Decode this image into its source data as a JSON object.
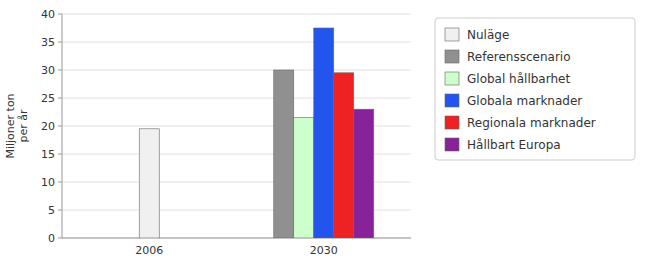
{
  "chart_data": {
    "type": "bar",
    "categories": [
      "2006",
      "2030"
    ],
    "series": [
      {
        "name": "Nuläge",
        "color": "#F0F0F0",
        "values": [
          19.5,
          null
        ]
      },
      {
        "name": "Referensscenario",
        "color": "#909090",
        "values": [
          null,
          30.0
        ]
      },
      {
        "name": "Global hållbarhet",
        "color": "#CCFFCC",
        "values": [
          null,
          21.5
        ]
      },
      {
        "name": "Globala marknader",
        "color": "#2255EE",
        "values": [
          null,
          37.5
        ]
      },
      {
        "name": "Regionala marknader",
        "color": "#EE2222",
        "values": [
          null,
          29.5
        ]
      },
      {
        "name": "Hållbart Europa",
        "color": "#882299",
        "values": [
          null,
          23.0
        ]
      }
    ],
    "y_label": "Miljoner ton\nper år",
    "ylim": [
      0,
      40
    ],
    "yticks": [
      0,
      5,
      10,
      15,
      20,
      25,
      30,
      35,
      40
    ],
    "grid": true,
    "legend": "right"
  }
}
